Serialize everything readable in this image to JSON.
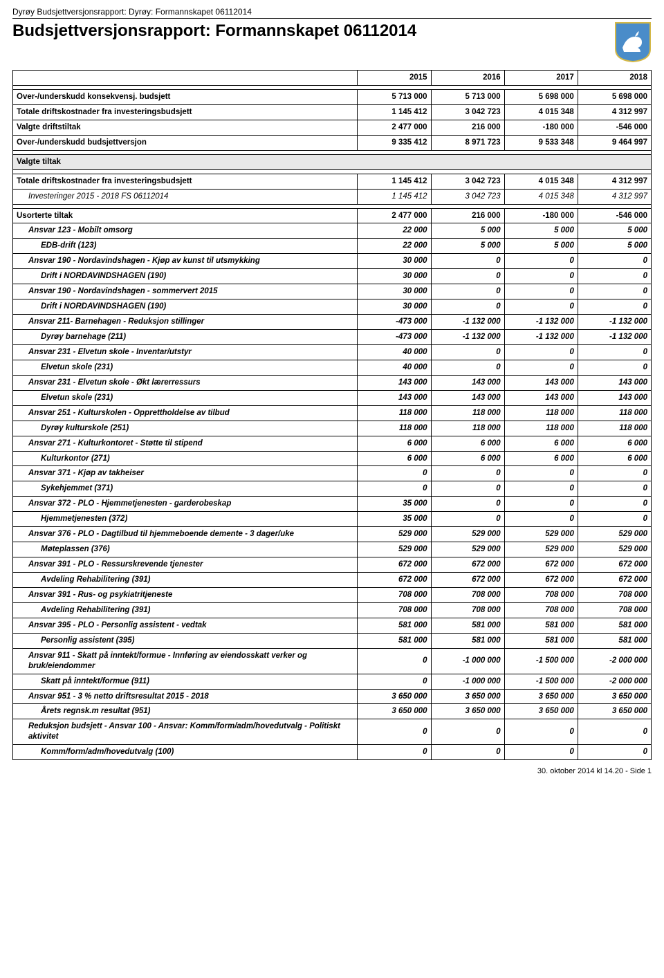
{
  "header_bar": "Dyrøy Budsjettversjonsrapport: Dyrøy: Formannskapet 06112014",
  "main_title": "Budsjettversjonsrapport: Formannskapet 06112014",
  "logo": {
    "bg_color": "#4a8cc9",
    "animal_color": "#ffffff",
    "border_color": "#d4b847"
  },
  "years": [
    "2015",
    "2016",
    "2017",
    "2018"
  ],
  "summary": [
    {
      "label": "Over-/underskudd konsekvensj. budsjett",
      "vals": [
        "5 713 000",
        "5 713 000",
        "5 698 000",
        "5 698 000"
      ],
      "bold": true
    },
    {
      "label": "Totale driftskostnader fra investeringsbudsjett",
      "vals": [
        "1 145 412",
        "3 042 723",
        "4 015 348",
        "4 312 997"
      ],
      "bold": true
    },
    {
      "label": "Valgte driftstiltak",
      "vals": [
        "2 477 000",
        "216 000",
        "-180 000",
        "-546 000"
      ],
      "bold": true
    },
    {
      "label": "Over-/underskudd budsjettversjon",
      "vals": [
        "9 335 412",
        "8 971 723",
        "9 533 348",
        "9 464 997"
      ],
      "bold": true
    }
  ],
  "section_title": "Valgte tiltak",
  "group1": [
    {
      "label": "Totale driftskostnader fra investeringsbudsjett",
      "vals": [
        "1 145 412",
        "3 042 723",
        "4 015 348",
        "4 312 997"
      ],
      "bold": true
    },
    {
      "label": "Investeringer 2015 - 2018 FS 06112014",
      "vals": [
        "1 145 412",
        "3 042 723",
        "4 015 348",
        "4 312 997"
      ],
      "italic": true,
      "ind": 1
    }
  ],
  "rows": [
    {
      "label": "Usorterte tiltak",
      "vals": [
        "2 477 000",
        "216 000",
        "-180 000",
        "-546 000"
      ],
      "bold": true
    },
    {
      "label": "Ansvar 123 - Mobilt omsorg",
      "vals": [
        "22 000",
        "5 000",
        "5 000",
        "5 000"
      ],
      "italic": true,
      "bold": true,
      "ind": 1
    },
    {
      "label": "EDB-drift (123)",
      "vals": [
        "22 000",
        "5 000",
        "5 000",
        "5 000"
      ],
      "italic": true,
      "bold": true,
      "ind": 2
    },
    {
      "label": "Ansvar 190 - Nordavindshagen - Kjøp av kunst til utsmykking",
      "vals": [
        "30 000",
        "0",
        "0",
        "0"
      ],
      "italic": true,
      "bold": true,
      "ind": 1
    },
    {
      "label": "Drift i NORDAVINDSHAGEN (190)",
      "vals": [
        "30 000",
        "0",
        "0",
        "0"
      ],
      "italic": true,
      "bold": true,
      "ind": 2
    },
    {
      "label": "Ansvar 190 - Nordavindshagen - sommervert 2015",
      "vals": [
        "30 000",
        "0",
        "0",
        "0"
      ],
      "italic": true,
      "bold": true,
      "ind": 1
    },
    {
      "label": "Drift i NORDAVINDSHAGEN (190)",
      "vals": [
        "30 000",
        "0",
        "0",
        "0"
      ],
      "italic": true,
      "bold": true,
      "ind": 2
    },
    {
      "label": "Ansvar 211- Barnehagen - Reduksjon stillinger",
      "vals": [
        "-473 000",
        "-1 132 000",
        "-1 132 000",
        "-1 132 000"
      ],
      "italic": true,
      "bold": true,
      "ind": 1
    },
    {
      "label": "Dyrøy barnehage (211)",
      "vals": [
        "-473 000",
        "-1 132 000",
        "-1 132 000",
        "-1 132 000"
      ],
      "italic": true,
      "bold": true,
      "ind": 2
    },
    {
      "label": "Ansvar 231 - Elvetun skole - Inventar/utstyr",
      "vals": [
        "40 000",
        "0",
        "0",
        "0"
      ],
      "italic": true,
      "bold": true,
      "ind": 1
    },
    {
      "label": "Elvetun skole (231)",
      "vals": [
        "40 000",
        "0",
        "0",
        "0"
      ],
      "italic": true,
      "bold": true,
      "ind": 2
    },
    {
      "label": "Ansvar 231 - Elvetun skole - Økt lærerressurs",
      "vals": [
        "143 000",
        "143 000",
        "143 000",
        "143 000"
      ],
      "italic": true,
      "bold": true,
      "ind": 1
    },
    {
      "label": "Elvetun skole (231)",
      "vals": [
        "143 000",
        "143 000",
        "143 000",
        "143 000"
      ],
      "italic": true,
      "bold": true,
      "ind": 2
    },
    {
      "label": "Ansvar 251 - Kulturskolen - Opprettholdelse av tilbud",
      "vals": [
        "118 000",
        "118 000",
        "118 000",
        "118 000"
      ],
      "italic": true,
      "bold": true,
      "ind": 1
    },
    {
      "label": "Dyrøy kulturskole (251)",
      "vals": [
        "118 000",
        "118 000",
        "118 000",
        "118 000"
      ],
      "italic": true,
      "bold": true,
      "ind": 2
    },
    {
      "label": "Ansvar 271 - Kulturkontoret - Støtte til stipend",
      "vals": [
        "6 000",
        "6 000",
        "6 000",
        "6 000"
      ],
      "italic": true,
      "bold": true,
      "ind": 1
    },
    {
      "label": "Kulturkontor (271)",
      "vals": [
        "6 000",
        "6 000",
        "6 000",
        "6 000"
      ],
      "italic": true,
      "bold": true,
      "ind": 2
    },
    {
      "label": "Ansvar 371 - Kjøp av takheiser",
      "vals": [
        "0",
        "0",
        "0",
        "0"
      ],
      "italic": true,
      "bold": true,
      "ind": 1
    },
    {
      "label": "Sykehjemmet (371)",
      "vals": [
        "0",
        "0",
        "0",
        "0"
      ],
      "italic": true,
      "bold": true,
      "ind": 2
    },
    {
      "label": "Ansvar 372 - PLO - Hjemmetjenesten - garderobeskap",
      "vals": [
        "35 000",
        "0",
        "0",
        "0"
      ],
      "italic": true,
      "bold": true,
      "ind": 1
    },
    {
      "label": "Hjemmetjenesten (372)",
      "vals": [
        "35 000",
        "0",
        "0",
        "0"
      ],
      "italic": true,
      "bold": true,
      "ind": 2
    },
    {
      "label": "Ansvar 376 - PLO - Dagtilbud til hjemmeboende demente - 3 dager/uke",
      "vals": [
        "529 000",
        "529 000",
        "529 000",
        "529 000"
      ],
      "italic": true,
      "bold": true,
      "ind": 1
    },
    {
      "label": "Møteplassen (376)",
      "vals": [
        "529 000",
        "529 000",
        "529 000",
        "529 000"
      ],
      "italic": true,
      "bold": true,
      "ind": 2
    },
    {
      "label": "Ansvar 391 - PLO - Ressurskrevende tjenester",
      "vals": [
        "672 000",
        "672 000",
        "672 000",
        "672 000"
      ],
      "italic": true,
      "bold": true,
      "ind": 1
    },
    {
      "label": "Avdeling Rehabilitering (391)",
      "vals": [
        "672 000",
        "672 000",
        "672 000",
        "672 000"
      ],
      "italic": true,
      "bold": true,
      "ind": 2
    },
    {
      "label": "Ansvar 391 - Rus-  og psykiatritjeneste",
      "vals": [
        "708 000",
        "708 000",
        "708 000",
        "708 000"
      ],
      "italic": true,
      "bold": true,
      "ind": 1
    },
    {
      "label": "Avdeling Rehabilitering (391)",
      "vals": [
        "708 000",
        "708 000",
        "708 000",
        "708 000"
      ],
      "italic": true,
      "bold": true,
      "ind": 2
    },
    {
      "label": "Ansvar 395 - PLO - Personlig assistent  - vedtak",
      "vals": [
        "581 000",
        "581 000",
        "581 000",
        "581 000"
      ],
      "italic": true,
      "bold": true,
      "ind": 1
    },
    {
      "label": "Personlig assistent (395)",
      "vals": [
        "581 000",
        "581 000",
        "581 000",
        "581 000"
      ],
      "italic": true,
      "bold": true,
      "ind": 2
    },
    {
      "label": "Ansvar 911 - Skatt på inntekt/formue - Innføring av eiendosskatt verker og bruk/eiendommer",
      "vals": [
        "0",
        "-1 000 000",
        "-1 500 000",
        "-2 000 000"
      ],
      "italic": true,
      "bold": true,
      "ind": 1
    },
    {
      "label": "Skatt på inntekt/formue (911)",
      "vals": [
        "0",
        "-1 000 000",
        "-1 500 000",
        "-2 000 000"
      ],
      "italic": true,
      "bold": true,
      "ind": 2
    },
    {
      "label": "Ansvar 951 - 3 % netto driftsresultat 2015 - 2018",
      "vals": [
        "3 650 000",
        "3 650 000",
        "3 650 000",
        "3 650 000"
      ],
      "italic": true,
      "bold": true,
      "ind": 1
    },
    {
      "label": "Årets regnsk.m resultat (951)",
      "vals": [
        "3 650 000",
        "3 650 000",
        "3 650 000",
        "3 650 000"
      ],
      "italic": true,
      "bold": true,
      "ind": 2
    },
    {
      "label": "Reduksjon budsjett - Ansvar 100 - Ansvar: Komm/form/adm/hovedutvalg  - Politiskt aktivitet",
      "vals": [
        "0",
        "0",
        "0",
        "0"
      ],
      "italic": true,
      "bold": true,
      "ind": 1
    },
    {
      "label": "Komm/form/adm/hovedutvalg (100)",
      "vals": [
        "0",
        "0",
        "0",
        "0"
      ],
      "italic": true,
      "bold": true,
      "ind": 2
    }
  ],
  "footer": "30. oktober 2014 kl 14.20 - Side 1"
}
